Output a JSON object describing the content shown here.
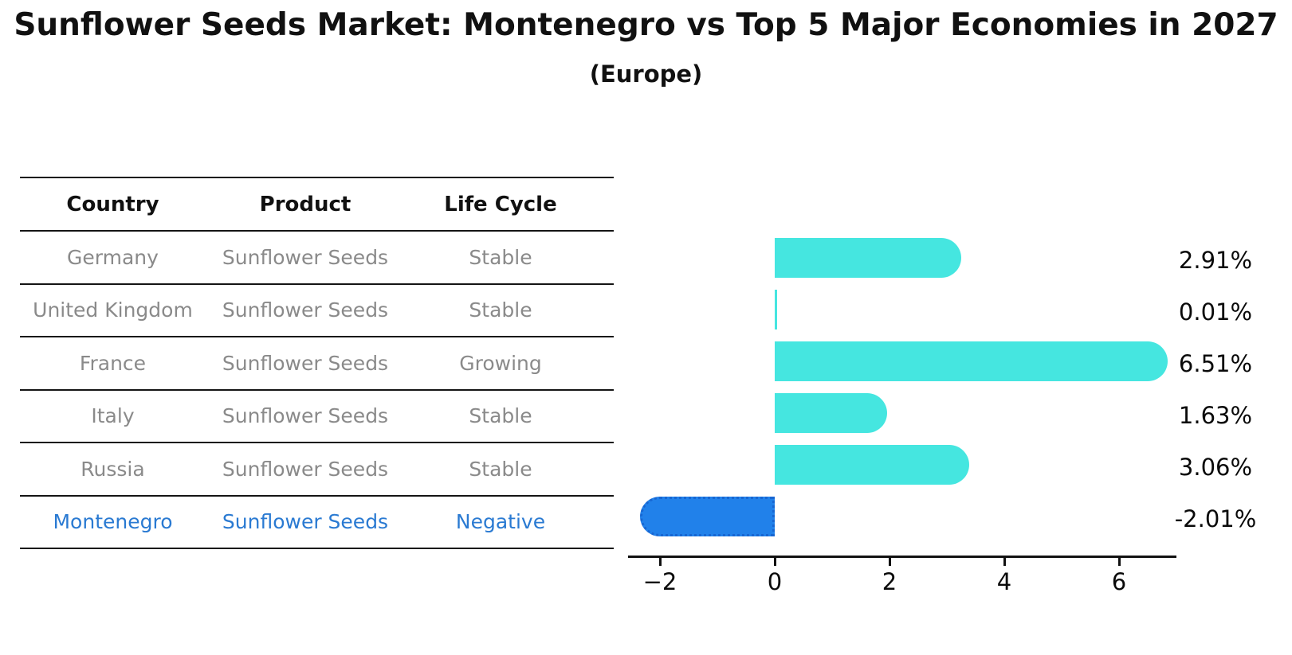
{
  "title": "Sunflower Seeds Market: Montenegro vs Top 5 Major Economies in 2027",
  "subtitle": "(Europe)",
  "table": {
    "headers": [
      "Country",
      "Product",
      "Life Cycle"
    ],
    "rows": [
      {
        "country": "Germany",
        "product": "Sunflower Seeds",
        "life_cycle": "Stable",
        "highlight": false
      },
      {
        "country": "United Kingdom",
        "product": "Sunflower Seeds",
        "life_cycle": "Stable",
        "highlight": false
      },
      {
        "country": "France",
        "product": "Sunflower Seeds",
        "life_cycle": "Growing",
        "highlight": false
      },
      {
        "country": "Italy",
        "product": "Sunflower Seeds",
        "life_cycle": "Stable",
        "highlight": false
      },
      {
        "country": "Russia",
        "product": "Sunflower Seeds",
        "life_cycle": "Stable",
        "highlight": false
      },
      {
        "country": "Montenegro",
        "product": "Sunflower Seeds",
        "life_cycle": "Negative",
        "highlight": true
      }
    ]
  },
  "chart_data": {
    "type": "bar",
    "orientation": "horizontal",
    "title": "Sunflower Seeds Market: Montenegro vs Top 5 Major Economies in 2027 (Europe)",
    "categories": [
      "Germany",
      "United Kingdom",
      "France",
      "Italy",
      "Russia",
      "Montenegro"
    ],
    "values": [
      2.91,
      0.01,
      6.51,
      1.63,
      3.06,
      -2.01
    ],
    "value_labels": [
      "2.91%",
      "0.01%",
      "6.51%",
      "1.63%",
      "3.06%",
      "-2.01%"
    ],
    "xticks": [
      -2,
      0,
      2,
      4,
      6
    ],
    "xtick_labels": [
      "−2",
      "0",
      "2",
      "4",
      "6"
    ],
    "xlim": [
      -2.6,
      7.0
    ],
    "grid": false,
    "legend": false,
    "highlight_index": 5,
    "bar_color": "#45e6e0",
    "highlight_bar_color": "#2181ea",
    "highlight_border_color": "#1766d2"
  },
  "colors": {
    "background": "#ffffff",
    "text": "#111111",
    "muted_text": "#8a8a8a",
    "highlight_text": "#2a7ad2",
    "bar_cyan": "#45e6e0",
    "bar_blue": "#2181ea"
  }
}
